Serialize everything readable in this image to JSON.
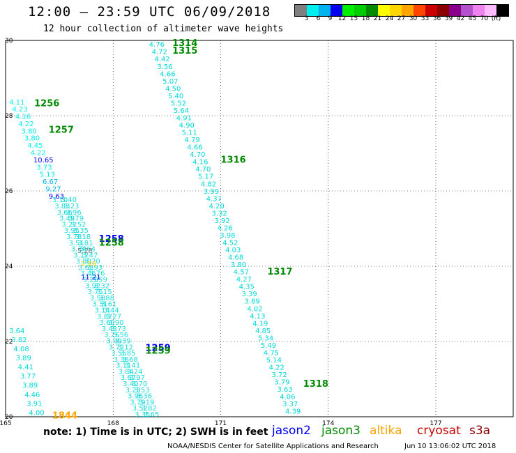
{
  "header": {
    "title": "12:00 – 23:59 UTC 06/09/2018",
    "subtitle": "12 hour collection of altimeter wave heights"
  },
  "legend": {
    "colors": [
      "#7f7f7f",
      "#00eeee",
      "#00b2ee",
      "#0000ee",
      "#00ee00",
      "#00cd00",
      "#008b00",
      "#ffff00",
      "#ffd700",
      "#ffa500",
      "#ff4500",
      "#cd0000",
      "#8b0000",
      "#8b008b",
      "#b452cd",
      "#ee82ee",
      "#ffbbff",
      "#000000"
    ],
    "labels": [
      "3",
      "6",
      "9",
      "12",
      "15",
      "18",
      "21",
      "24",
      "27",
      "30",
      "33",
      "36",
      "39",
      "42",
      "45",
      "70",
      "(ft)"
    ]
  },
  "map": {
    "lon_ticks": [
      "165",
      "168",
      "171",
      "174",
      "177"
    ],
    "lat_ticks": [
      "30",
      "28",
      "26",
      "24",
      "22",
      "20"
    ],
    "tracks": [
      {
        "name": "1314",
        "color": "#008b00",
        "label": {
          "lon": 169.65,
          "lat": 29.85
        },
        "values": [
          "4.76",
          "4.72",
          "4.42",
          "3.56",
          "4.66",
          "5.07",
          "4.50",
          "5.40",
          "5.52",
          "5.64",
          "4.91",
          "4.90",
          "5.11",
          "4.79",
          "4.66",
          "4.70",
          "4.16",
          "4.70",
          "5.17",
          "4.82",
          "3.99",
          "4.37",
          "4.20",
          "3.32",
          "3.92",
          "4.26",
          "3.98",
          "4.52",
          "4.03",
          "4.68",
          "3.80",
          "4.57",
          "4.27",
          "4.35",
          "3.39",
          "3.89",
          "4.02",
          "4.13",
          "4.19",
          "4.85",
          "5.34",
          "5.49",
          "4.75",
          "5.14",
          "4.22",
          "3.72",
          "3.79",
          "3.63",
          "4.06",
          "3.37",
          "4.39"
        ],
        "start": {
          "lon": 169.0,
          "lat": 29.83
        },
        "end": {
          "lon": 172.8,
          "lat": 20.08
        }
      },
      {
        "name": "1315",
        "color": "#008b00",
        "label": {
          "lon": 169.65,
          "lat": 29.65
        }
      },
      {
        "name": "1316",
        "color": "#008b00",
        "label": {
          "lon": 171.0,
          "lat": 26.75
        }
      },
      {
        "name": "1317",
        "color": "#008b00",
        "label": {
          "lon": 172.3,
          "lat": 23.78
        }
      },
      {
        "name": "1318",
        "color": "#008b00",
        "label": {
          "lon": 173.3,
          "lat": 20.8
        }
      },
      {
        "name": "1256",
        "color": "#008b00",
        "label": {
          "lon": 165.8,
          "lat": 28.25
        }
      },
      {
        "name": "1257",
        "color": "#008b00",
        "label": {
          "lon": 166.2,
          "lat": 27.55
        }
      },
      {
        "name": "1258",
        "color": "#0000ee",
        "label": {
          "lon": 167.6,
          "lat": 24.65
        }
      },
      {
        "name": "1258",
        "color": "#008b00",
        "label": {
          "lon": 167.6,
          "lat": 24.55
        }
      },
      {
        "name": "1259",
        "color": "#0000ee",
        "label": {
          "lon": 168.9,
          "lat": 21.75
        }
      },
      {
        "name": "1259",
        "color": "#008b00",
        "label": {
          "lon": 168.9,
          "lat": 21.68
        }
      },
      {
        "name": "1844",
        "color": "#ffa500",
        "label": {
          "lon": 166.3,
          "lat": 19.95
        }
      }
    ],
    "west_values": [
      "4.11",
      "4.23",
      "4.16",
      "4.22",
      "3.80",
      "3.80",
      "4.45",
      "4.22",
      "10.65",
      "3.73",
      "5.13",
      "6.67",
      "9.27",
      "9.63"
    ],
    "west_colors": [
      "#00eeee",
      "#00eeee",
      "#00eeee",
      "#00eeee",
      "#00eeee",
      "#00eeee",
      "#00eeee",
      "#00eeee",
      "#0000ee",
      "#00eeee",
      "#00eeee",
      "#00b2ee",
      "#00b2ee",
      "#0000ee"
    ],
    "mid_values": [
      "5.28",
      "2.99",
      "11.21"
    ],
    "mid_colors": [
      "#7f7f7f",
      "#ffd700",
      "#0000ee"
    ],
    "sw_values": [
      "3.64",
      "3.82",
      "4.08",
      "3.89",
      "4.41",
      "3.77",
      "3.89",
      "4.46",
      "3.91",
      "4.00"
    ]
  },
  "satellites": [
    {
      "name": "jason2",
      "color": "#0000ee"
    },
    {
      "name": "jason3",
      "color": "#008b00"
    },
    {
      "name": "altika",
      "color": "#ffa500"
    },
    {
      "name": "cryosat",
      "color": "#cd0000"
    },
    {
      "name": "s3a",
      "color": "#8b0000"
    }
  ],
  "footer": {
    "note": "note: 1) Time is in UTC; 2) SWH is in feet",
    "credit": "NOAA/NESDIS Center for Satellite Applications and Research",
    "timestamp": "Jun 10 13:06:02 UTC 2018"
  }
}
